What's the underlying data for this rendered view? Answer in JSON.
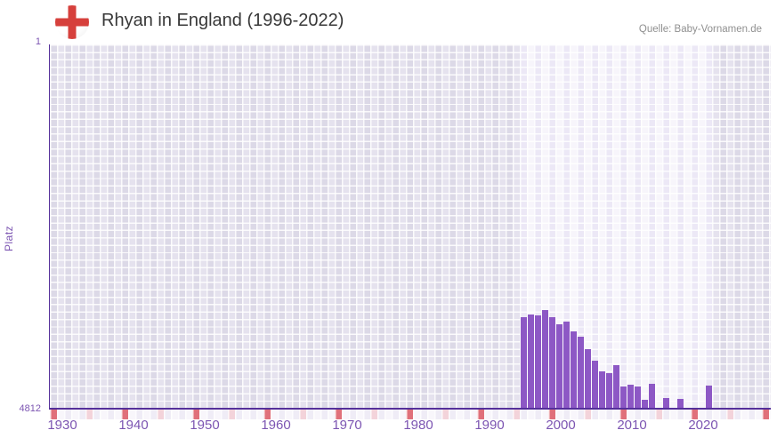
{
  "page": {
    "title": "Rhyan in England (1996-2022)",
    "source": "Quelle: Baby-Vornamen.de",
    "flag_icon": "england-flag-icon"
  },
  "chart_data": {
    "type": "bar",
    "title": "Rhyan in England (1996-2022)",
    "xlabel": "",
    "ylabel": "Platz",
    "y_axis": {
      "inverted": true,
      "top_tick_label": "1",
      "bottom_tick_label": "4812",
      "min": 1,
      "max": 4812
    },
    "x_axis": {
      "start_year": 1930,
      "end_year": 2031,
      "tick_years": [
        1930,
        1940,
        1950,
        1960,
        1970,
        1980,
        1990,
        2000,
        2010,
        2020
      ],
      "decade_marker_years": [
        1930,
        1940,
        1950,
        1960,
        1970,
        1980,
        1990,
        2000,
        2010,
        2020,
        2030
      ],
      "mid_decade_marker_years": [
        1935,
        1945,
        1955,
        1965,
        1975,
        1985,
        1995,
        2005,
        2015,
        2025
      ]
    },
    "highlight_year_range": [
      1996,
      2022
    ],
    "legend": "none",
    "grid": true,
    "series": [
      {
        "name": "Platz",
        "points": [
          {
            "year": 1996,
            "platz": 3610
          },
          {
            "year": 1997,
            "platz": 3575
          },
          {
            "year": 1998,
            "platz": 3590
          },
          {
            "year": 1999,
            "platz": 3520
          },
          {
            "year": 2000,
            "platz": 3615
          },
          {
            "year": 2001,
            "platz": 3700
          },
          {
            "year": 2002,
            "platz": 3675
          },
          {
            "year": 2003,
            "platz": 3805
          },
          {
            "year": 2004,
            "platz": 3865
          },
          {
            "year": 2005,
            "platz": 4035
          },
          {
            "year": 2006,
            "platz": 4190
          },
          {
            "year": 2007,
            "platz": 4330
          },
          {
            "year": 2008,
            "platz": 4350
          },
          {
            "year": 2009,
            "platz": 4250
          },
          {
            "year": 2010,
            "platz": 4530
          },
          {
            "year": 2011,
            "platz": 4505
          },
          {
            "year": 2012,
            "platz": 4525
          },
          {
            "year": 2013,
            "platz": 4710
          },
          {
            "year": 2014,
            "platz": 4490
          },
          {
            "year": 2016,
            "platz": 4680
          },
          {
            "year": 2018,
            "platz": 4690
          },
          {
            "year": 2022,
            "platz": 4520
          }
        ]
      }
    ],
    "colors": {
      "bar": "#8d58c5",
      "axis_line": "#55309a",
      "tick_label": "#7c55b2",
      "decade_marker": "#e0707a",
      "mid_decade_marker": "#f3d3da",
      "highlight_bg": "#f4f1fa",
      "outside_bg": "#e0ddeb",
      "title_text": "#383838",
      "source_text": "#909090",
      "flag_cross": "#d6403c"
    }
  }
}
